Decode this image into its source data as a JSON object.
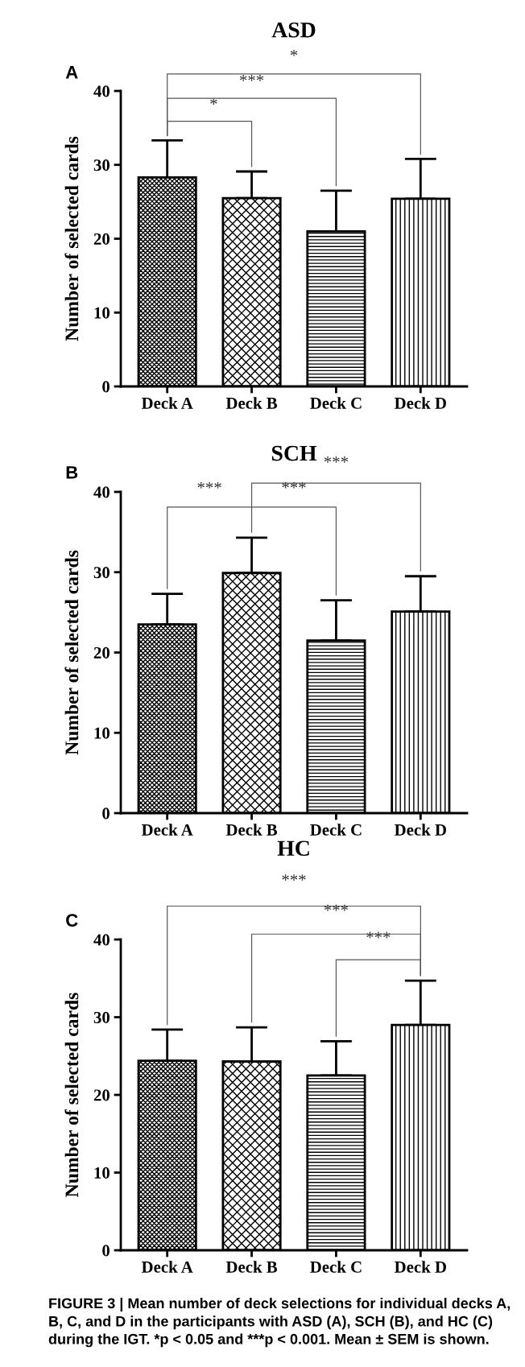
{
  "chart_data": [
    {
      "type": "bar",
      "title": "ASD",
      "ylabel": "Number of selected cards",
      "categories": [
        "Deck A",
        "Deck B",
        "Deck C",
        "Deck D"
      ],
      "values": [
        28.3,
        25.5,
        21.0,
        25.4
      ],
      "errors": [
        [
          28.3,
          33.3
        ],
        [
          25.5,
          29.1
        ],
        [
          21.0,
          26.5
        ],
        [
          25.4,
          30.8
        ]
      ],
      "ylim": [
        0,
        40
      ],
      "yticks": [
        0,
        10,
        20,
        30,
        40
      ],
      "grid": false,
      "legend": false,
      "annotations": [
        "A",
        "*",
        "***",
        "*"
      ]
    },
    {
      "type": "bar",
      "title": "SCH",
      "ylabel": "Number of selected cards",
      "categories": [
        "Deck A",
        "Deck B",
        "Deck C",
        "Deck D"
      ],
      "values": [
        23.5,
        29.9,
        21.5,
        25.1
      ],
      "errors": [
        [
          23.5,
          27.3
        ],
        [
          29.9,
          34.3
        ],
        [
          21.5,
          26.5
        ],
        [
          25.1,
          29.5
        ]
      ],
      "ylim": [
        0,
        40
      ],
      "yticks": [
        0,
        10,
        20,
        30,
        40
      ],
      "grid": false,
      "legend": false,
      "annotations": [
        "B",
        "***",
        "***",
        "***"
      ]
    },
    {
      "type": "bar",
      "title": "HC",
      "ylabel": "Number of selected cards",
      "categories": [
        "Deck A",
        "Deck B",
        "Deck C",
        "Deck D"
      ],
      "values": [
        24.4,
        24.3,
        22.5,
        29.0
      ],
      "errors": [
        [
          24.4,
          28.4
        ],
        [
          24.3,
          28.7
        ],
        [
          22.5,
          26.9
        ],
        [
          29.0,
          34.7
        ]
      ],
      "ylim": [
        0,
        40
      ],
      "yticks": [
        0,
        10,
        20,
        30,
        40
      ],
      "grid": false,
      "legend": false,
      "annotations": [
        "C",
        "***",
        "***",
        "***",
        "FIGURE 3 | Mean number of deck selections for individual decks A, B, C, and D in the participants with ASD (A), SCH (B), and HC (C) during the IGT. *p < 0.05 and ***p < 0.001. Mean ± SEM is shown."
      ]
    }
  ]
}
